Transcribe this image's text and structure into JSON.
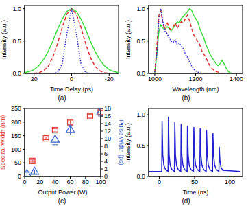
{
  "chart_data": [
    {
      "type": "line",
      "title": "(a)",
      "xlabel": "Time Delay (ps)",
      "ylabel": "Intensity (a.u.)",
      "xlim": [
        25,
        -25
      ],
      "xticks": [
        20,
        0,
        -20
      ],
      "ylim": [
        0,
        1.05
      ],
      "yticks": [
        {
          "value": 0,
          "label": "0.0"
        },
        {
          "value": 0.5,
          "label": "0.5"
        },
        {
          "value": 1,
          "label": "1.0"
        }
      ],
      "x": [
        -25,
        -22.5,
        -20,
        -17.5,
        -15,
        -12.5,
        -10,
        -7.5,
        -5,
        -2.5,
        0,
        2.5,
        5,
        7.5,
        10,
        12.5,
        15,
        17.5,
        20,
        22.5,
        25
      ],
      "series": [
        {
          "color": "#3ddc3d",
          "line_style": "solid",
          "values": [
            0.013,
            0.03,
            0.06,
            0.12,
            0.21,
            0.34,
            0.5,
            0.68,
            0.84,
            0.96,
            1,
            0.96,
            0.84,
            0.68,
            0.5,
            0.34,
            0.21,
            0.12,
            0.06,
            0.03,
            0.013
          ]
        },
        {
          "color": "#e03030",
          "line_style": "dashed",
          "values": [
            0,
            0.001,
            0.004,
            0.01,
            0.04,
            0.11,
            0.25,
            0.46,
            0.71,
            0.92,
            1,
            0.92,
            0.71,
            0.46,
            0.25,
            0.11,
            0.04,
            0.01,
            0.004,
            0.001,
            0
          ]
        },
        {
          "color": "#2828c8",
          "line_style": "dotted",
          "values": [
            0,
            0,
            0,
            0,
            0,
            0,
            0,
            0.013,
            0.15,
            0.62,
            1,
            0.62,
            0.15,
            0.013,
            0,
            0,
            0,
            0,
            0,
            0,
            0
          ]
        }
      ]
    },
    {
      "type": "line",
      "title": "(b)",
      "xlabel": "Wavelength (nm)",
      "ylabel": "Intensity (a.u.)",
      "xlim": [
        970,
        1430
      ],
      "xticks": [
        1000,
        1200,
        1400
      ],
      "ylim": [
        0,
        1.05
      ],
      "yticks": [
        {
          "value": 0,
          "label": "0.0"
        },
        {
          "value": 0.5,
          "label": "0.5"
        },
        {
          "value": 1,
          "label": "1.0"
        }
      ],
      "x": [
        1000,
        1010,
        1020,
        1030,
        1040,
        1050,
        1060,
        1070,
        1080,
        1090,
        1100,
        1110,
        1120,
        1130,
        1140,
        1150,
        1160,
        1170,
        1180,
        1190,
        1200,
        1210,
        1220,
        1230,
        1240,
        1250,
        1260,
        1270,
        1280,
        1290,
        1300,
        1310,
        1320,
        1330,
        1340,
        1350,
        1360,
        1370,
        1380
      ],
      "series": [
        {
          "color": "#3ddc3d",
          "line_style": "solid",
          "values": [
            0,
            0.3,
            0.65,
            0.75,
            0.7,
            0.68,
            0.72,
            0.7,
            0.66,
            0.7,
            0.75,
            0.8,
            0.78,
            0.85,
            0.88,
            0.92,
            0.95,
            1,
            0.98,
            0.9,
            0.85,
            0.8,
            0.7,
            0.62,
            0.55,
            0.45,
            0.38,
            0.3,
            0.25,
            0.2,
            0.15,
            0.12,
            0.15,
            0.2,
            0.15,
            0.08,
            0.03,
            0.01,
            0
          ]
        },
        {
          "color": "#e03030",
          "line_style": "dashed",
          "values": [
            0.02,
            0.4,
            0.9,
            0.97,
            0.75,
            0.7,
            0.8,
            0.7,
            0.68,
            0.72,
            0.78,
            0.7,
            0.75,
            0.8,
            0.78,
            0.85,
            0.9,
            0.82,
            0.7,
            0.6,
            0.55,
            0.5,
            0.45,
            0.35,
            0.3,
            0.25,
            0.18,
            0.12,
            0.08,
            0.05,
            0.03,
            0.02,
            0.01,
            0,
            0,
            0,
            0,
            0,
            0
          ]
        },
        {
          "color": "#2828c8",
          "line_style": "dotted",
          "values": [
            0.02,
            0.3,
            0.85,
            1,
            0.8,
            0.65,
            0.62,
            0.55,
            0.5,
            0.48,
            0.52,
            0.45,
            0.47,
            0.42,
            0.38,
            0.3,
            0.25,
            0.18,
            0.12,
            0.07,
            0.04,
            0.02,
            0.01,
            0,
            0,
            0,
            0,
            0,
            0,
            0,
            0,
            0,
            0,
            0,
            0,
            0,
            0,
            0,
            0
          ]
        }
      ]
    },
    {
      "type": "scatter",
      "title": "(c)",
      "xlabel": "Output Power (W)",
      "ylabel": "Spectral Width (nm)",
      "y2label": "Pulse Width (ps)",
      "xlim": [
        0,
        100
      ],
      "xticks": [
        0,
        20,
        40,
        60,
        80,
        100
      ],
      "ylim": [
        0,
        250
      ],
      "yticks": [
        0,
        50,
        100,
        150,
        200,
        250
      ],
      "y2lim": [
        0,
        18
      ],
      "y2ticks": [
        0,
        2,
        4,
        6,
        8,
        10,
        12,
        14,
        16,
        18
      ],
      "series": [
        {
          "color": "#e0403a",
          "marker": "square",
          "x": [
            10,
            28,
            40,
            60,
            86,
            100
          ],
          "values": [
            57,
            140,
            170,
            200,
            222,
            236
          ],
          "errors": [
            4,
            5,
            6,
            7,
            7,
            8
          ]
        },
        {
          "color": "#3a64c8",
          "marker": "triangle",
          "axis": "y2",
          "x": [
            3,
            13,
            40,
            60,
            100
          ],
          "values": [
            0.6,
            1.2,
            9.7,
            12.3,
            17
          ],
          "errors": [
            0.5,
            0.5,
            1.3,
            1.3,
            1
          ]
        }
      ]
    },
    {
      "type": "line",
      "title": "(d)",
      "xlabel": "Time (ns)",
      "ylabel": "Intensity (a.u.)",
      "xlim": [
        -15,
        118
      ],
      "xticks": [
        0,
        50,
        100
      ],
      "ylim": [
        0,
        1.1
      ],
      "yticks": [
        {
          "value": 0,
          "label": "0.0"
        },
        {
          "value": 0.5,
          "label": "0.5"
        },
        {
          "value": 1,
          "label": "1.0"
        }
      ],
      "x": [
        -14,
        3.5,
        4,
        5,
        6.5,
        9,
        12.5,
        13,
        14,
        15.5,
        18,
        21.5,
        22,
        23,
        24.5,
        27,
        30.5,
        31,
        32,
        33.5,
        36,
        39.5,
        40,
        41,
        42.5,
        45,
        48.5,
        49,
        50,
        51.5,
        54,
        57.5,
        58,
        59,
        60.5,
        63,
        66.5,
        67,
        68,
        69.5,
        72,
        75.5,
        76,
        77,
        78.5,
        81,
        84.5,
        85,
        86,
        87.5,
        90,
        115
      ],
      "series": [
        {
          "color": "#2020d0",
          "line_style": "solid",
          "values": [
            0.08,
            0.08,
            0.9,
            0.35,
            0.18,
            0.11,
            0.08,
            0.97,
            0.35,
            0.18,
            0.11,
            0.08,
            0.88,
            0.35,
            0.18,
            0.11,
            0.08,
            0.85,
            0.35,
            0.18,
            0.11,
            0.08,
            0.82,
            0.35,
            0.18,
            0.11,
            0.08,
            0.8,
            0.35,
            0.18,
            0.11,
            0.08,
            0.78,
            0.35,
            0.18,
            0.11,
            0.08,
            0.75,
            0.35,
            0.18,
            0.11,
            0.08,
            0.7,
            0.35,
            0.18,
            0.11,
            0.08,
            0.48,
            0.25,
            0.15,
            0.1,
            0.08
          ]
        }
      ]
    }
  ]
}
